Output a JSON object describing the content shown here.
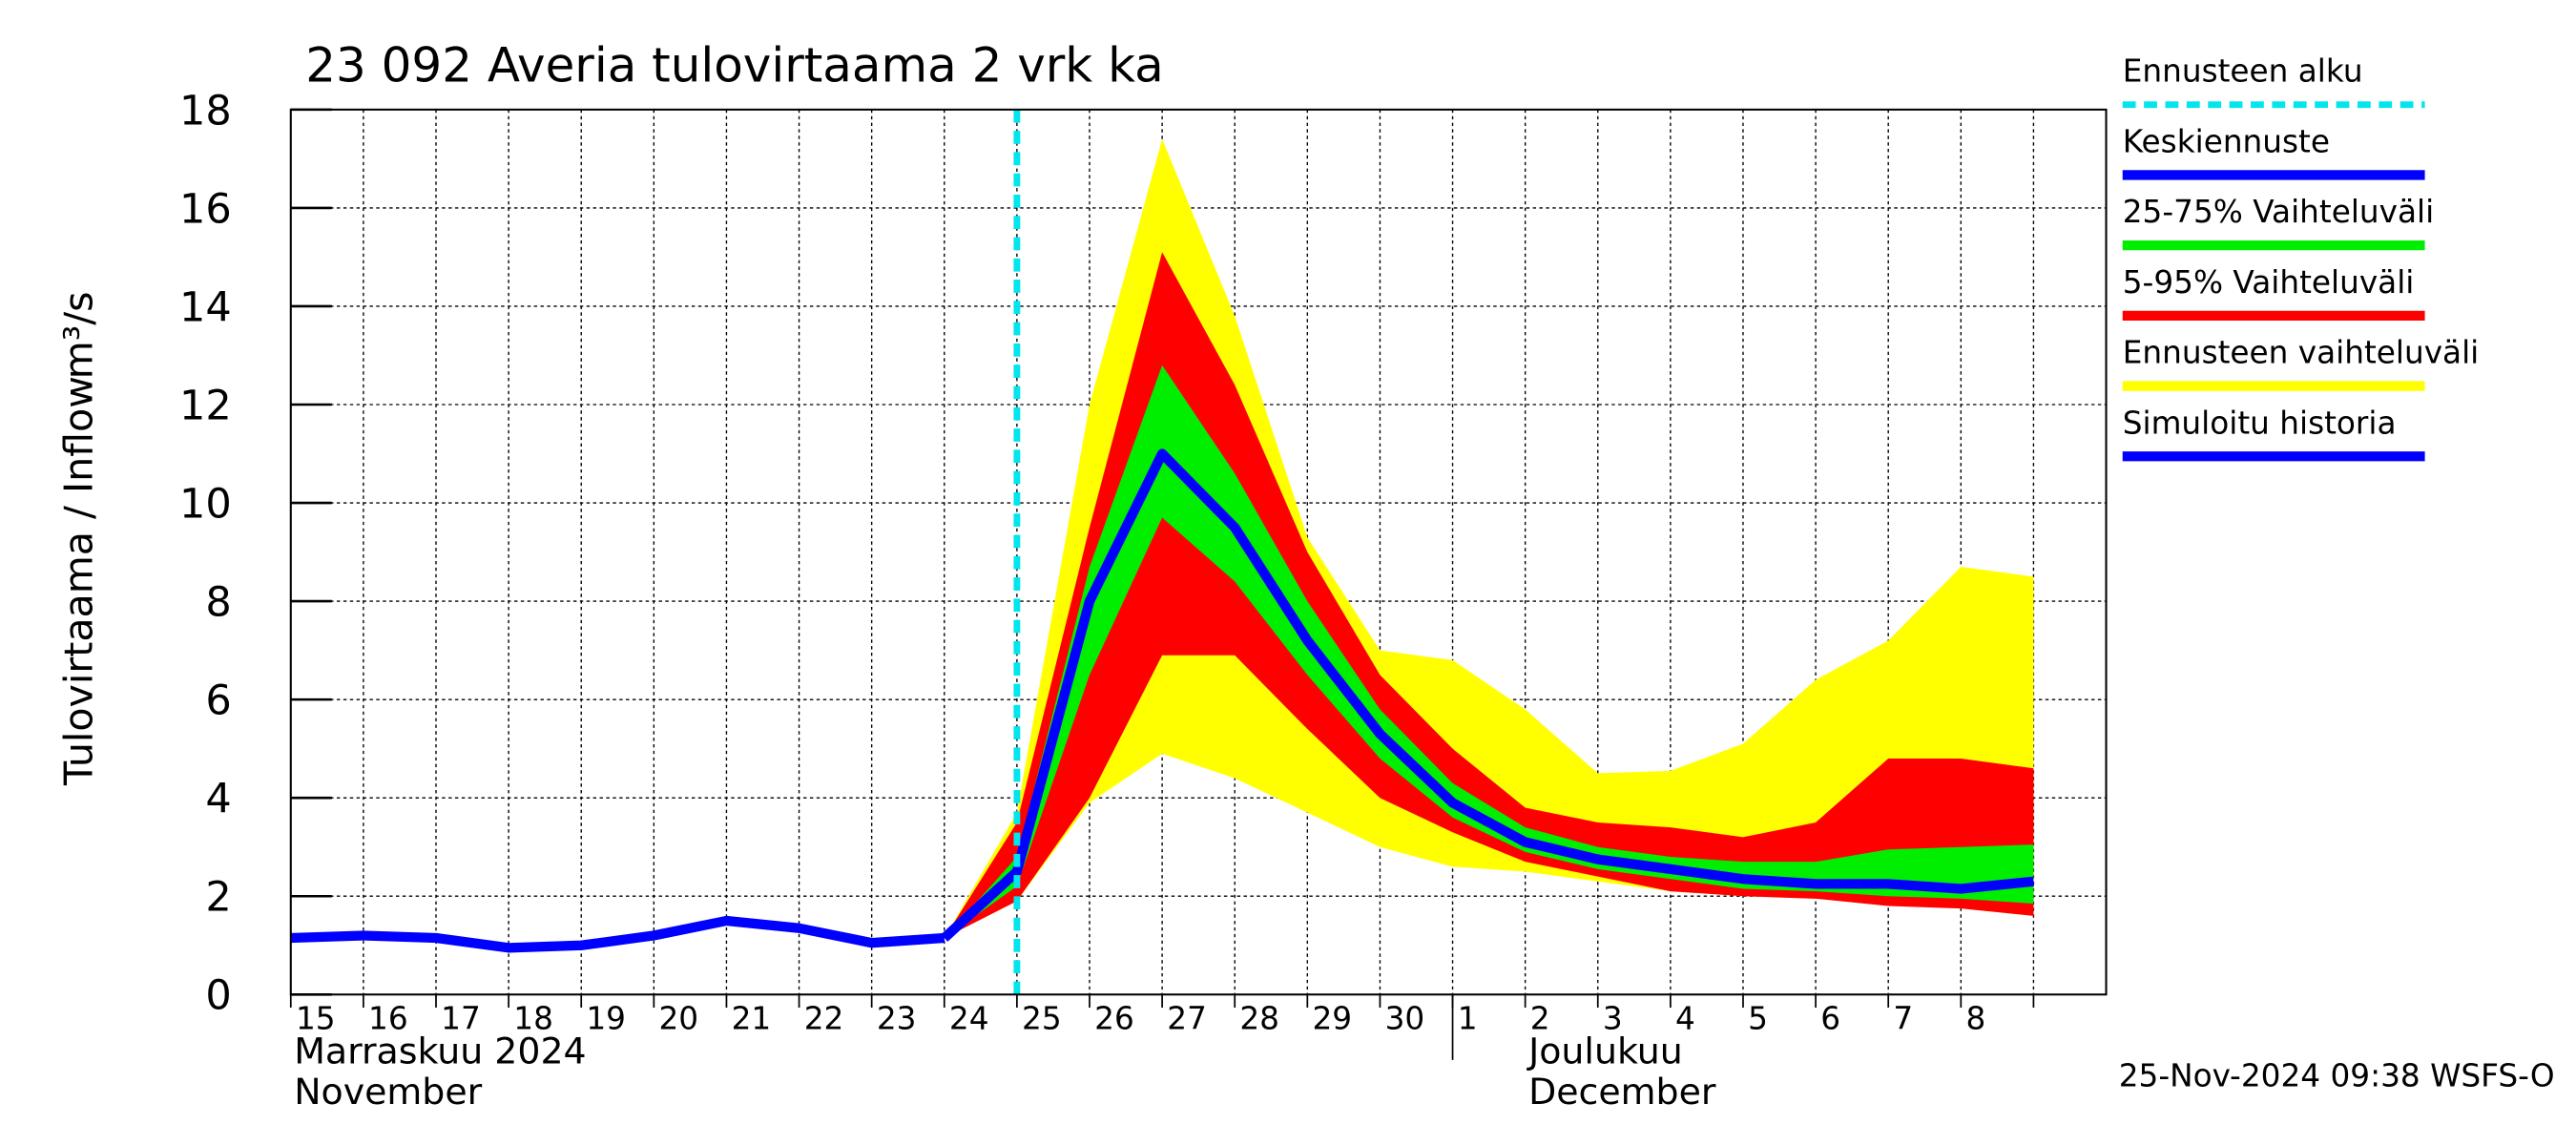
{
  "chart_data": {
    "type": "line",
    "title": "23 092 Averia tulovirtaama 2 vrk ka",
    "y_label": "Tulovirtaama / Inflow",
    "y_unit": "m³/s",
    "footer": "25-Nov-2024 09:38 WSFS-O",
    "categories": [
      "15",
      "16",
      "17",
      "18",
      "19",
      "20",
      "21",
      "22",
      "23",
      "24",
      "25",
      "26",
      "27",
      "28",
      "29",
      "30",
      "1",
      "2",
      "3",
      "4",
      "5",
      "6",
      "7",
      "8",
      null
    ],
    "months": [
      {
        "name_fi": "Marraskuu 2024",
        "name_en": "November",
        "start": 0
      },
      {
        "name_fi": "Joulukuu",
        "name_en": "December",
        "start": 16
      }
    ],
    "ylim": [
      0,
      18
    ],
    "yticks": [
      0,
      2,
      4,
      6,
      8,
      10,
      12,
      14,
      16,
      18
    ],
    "grid": true,
    "forecast_start": {
      "name": "Ennusteen alku",
      "color": "#00e5ee",
      "x": 10
    },
    "bands": [
      {
        "name": "Ennusteen vaihteluväli",
        "color": "#ffff00",
        "high": [
          null,
          null,
          null,
          null,
          null,
          null,
          null,
          null,
          null,
          1.15,
          3.7,
          12.0,
          17.4,
          13.8,
          9.3,
          7.0,
          6.8,
          5.8,
          4.5,
          4.55,
          5.1,
          6.4,
          7.2,
          8.7,
          8.5
        ],
        "low": [
          null,
          null,
          null,
          null,
          null,
          null,
          null,
          null,
          null,
          1.15,
          1.9,
          3.9,
          4.9,
          4.4,
          3.7,
          3.0,
          2.6,
          2.5,
          2.3,
          2.1,
          2.0,
          1.95,
          1.85,
          1.75,
          1.6
        ]
      },
      {
        "name": "5-95% Vaihteluväli",
        "color": "#ff0000",
        "high": [
          null,
          null,
          null,
          null,
          null,
          null,
          null,
          null,
          null,
          1.15,
          3.5,
          9.5,
          15.1,
          12.4,
          9.0,
          6.5,
          5.0,
          3.8,
          3.5,
          3.4,
          3.2,
          3.5,
          4.8,
          4.8,
          4.6
        ],
        "low": [
          null,
          null,
          null,
          null,
          null,
          null,
          null,
          null,
          null,
          1.15,
          1.9,
          4.0,
          6.9,
          6.9,
          5.4,
          4.0,
          3.3,
          2.7,
          2.4,
          2.1,
          2.0,
          1.95,
          1.8,
          1.75,
          1.6
        ]
      },
      {
        "name": "25-75% Vaihteluväli",
        "color": "#00ee00",
        "high": [
          null,
          null,
          null,
          null,
          null,
          null,
          null,
          null,
          null,
          1.15,
          2.8,
          8.7,
          12.8,
          10.6,
          8.0,
          5.8,
          4.3,
          3.4,
          3.0,
          2.8,
          2.7,
          2.7,
          2.95,
          3.0,
          3.05
        ],
        "low": [
          null,
          null,
          null,
          null,
          null,
          null,
          null,
          null,
          null,
          1.15,
          2.2,
          6.5,
          9.7,
          8.4,
          6.5,
          4.8,
          3.6,
          2.9,
          2.55,
          2.35,
          2.15,
          2.1,
          2.0,
          1.95,
          1.85
        ]
      }
    ],
    "series": [
      {
        "name": "Keskiennuste",
        "color": "#0000ff",
        "values": [
          null,
          null,
          null,
          null,
          null,
          null,
          null,
          null,
          null,
          1.15,
          2.5,
          8.0,
          11.0,
          9.5,
          7.2,
          5.3,
          3.9,
          3.1,
          2.75,
          2.55,
          2.35,
          2.25,
          2.25,
          2.15,
          2.3
        ]
      },
      {
        "name": "Simuloitu historia",
        "color": "#0000ff",
        "values": [
          1.15,
          1.2,
          1.15,
          0.95,
          1.0,
          1.2,
          1.5,
          1.35,
          1.05,
          1.15,
          null,
          null,
          null,
          null,
          null,
          null,
          null,
          null,
          null,
          null,
          null,
          null,
          null,
          null,
          null
        ]
      }
    ],
    "legend_order": [
      "forecast_start",
      "series.0",
      "bands.2",
      "bands.1",
      "bands.0",
      "series.1"
    ]
  }
}
